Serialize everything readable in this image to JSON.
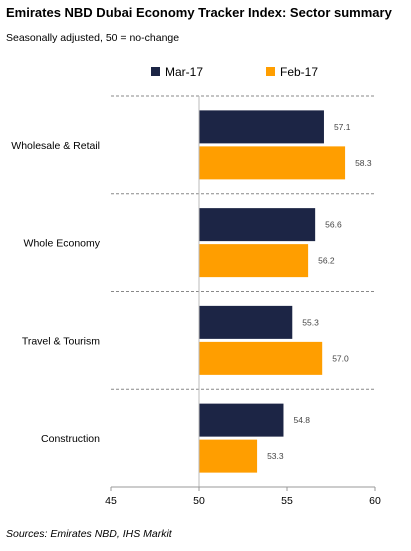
{
  "header": {
    "title": "Emirates NBD Dubai Economy Tracker Index: Sector summary",
    "subtitle": "Seasonally adjusted, 50 = no-change"
  },
  "footer": {
    "source": "Sources: Emirates NBD, IHS Markit"
  },
  "colors": {
    "mar17": "#1c2545",
    "feb17": "#ff9e00",
    "axis": "#999999",
    "gridline": "#888888"
  },
  "chart_data": {
    "type": "bar",
    "orientation": "horizontal",
    "title": "Emirates NBD Dubai Economy Tracker Index: Sector summary",
    "subtitle": "Seasonally adjusted, 50 = no-change",
    "categories": [
      "Wholesale & Retail",
      "Whole Economy",
      "Travel & Tourism",
      "Construction"
    ],
    "series": [
      {
        "name": "Mar-17",
        "values": [
          57.1,
          56.6,
          55.3,
          54.8
        ],
        "labels": [
          "57.1",
          "56.6",
          "55.3",
          "54.8"
        ]
      },
      {
        "name": "Feb-17",
        "values": [
          58.3,
          56.2,
          57.0,
          53.3
        ],
        "labels": [
          "58.3",
          "56.2",
          "57.0",
          "53.3"
        ]
      }
    ],
    "xlim": [
      45,
      60
    ],
    "xticks": [
      45,
      50,
      55,
      60
    ],
    "baseline": 50,
    "legend": "top",
    "grid": "dashed separators between categories"
  }
}
